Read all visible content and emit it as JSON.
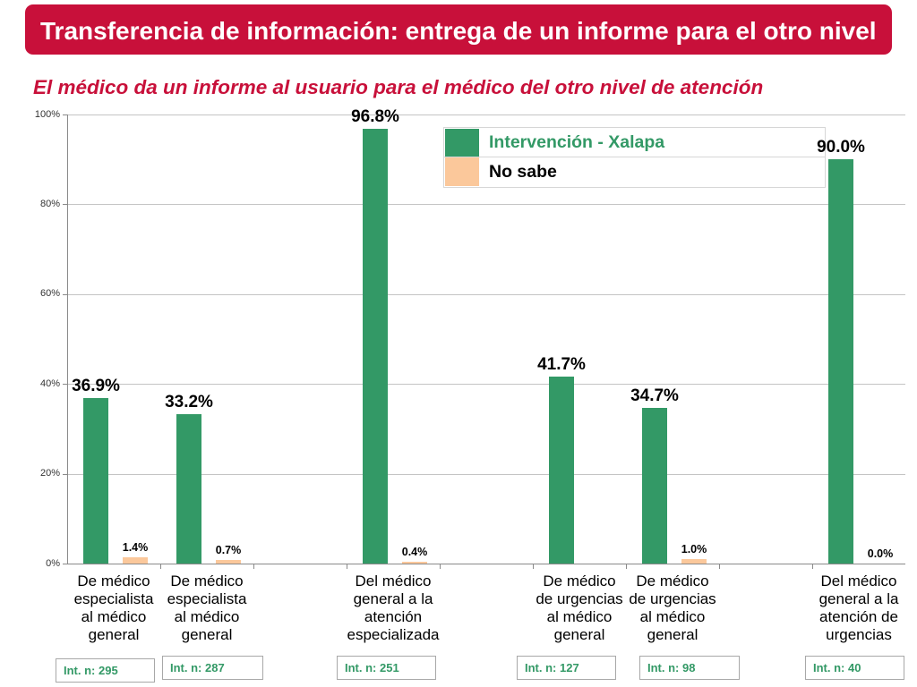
{
  "slide": {
    "title": "Transferencia de información: entrega de un informe para el otro nivel",
    "accent_color": "#c8103a"
  },
  "chart_data": {
    "type": "bar",
    "title": "El médico da un informe al usuario para el médico del otro nivel de atención",
    "xlabel": "",
    "ylabel": "",
    "categories": [
      "De médico\nespecialista\nal médico\ngeneral",
      "De médico\nespecialista\nal médico\ngeneral",
      "",
      "Del médico\ngeneral a la\natención\nespecializada",
      "",
      "De médico\nde urgencias\nal médico\ngeneral",
      "De médico\nde urgencias\nal médico\ngeneral",
      "",
      "Del médico\ngeneral a la\natención de\nurgencias"
    ],
    "series": [
      {
        "name": "Intervención - Xalapa",
        "color": "#339966",
        "label_color": "#339966",
        "values": [
          36.9,
          33.2,
          null,
          96.8,
          null,
          41.7,
          34.7,
          null,
          90.0
        ],
        "data_labels": [
          "36.9%",
          "33.2%",
          null,
          "96.8%",
          null,
          "41.7%",
          "34.7%",
          null,
          "90.0%"
        ]
      },
      {
        "name": "No sabe",
        "color": "#fbc89b",
        "label_color": "#000000",
        "values": [
          1.4,
          0.7,
          null,
          0.4,
          null,
          null,
          1.0,
          null,
          0.0
        ],
        "data_labels": [
          "1.4%",
          "0.7%",
          null,
          "0.4%",
          null,
          null,
          "1.0%",
          null,
          "0.0%"
        ]
      }
    ],
    "ylim": [
      0,
      100
    ],
    "yticks": [
      0,
      20,
      40,
      60,
      80,
      100
    ],
    "ytick_labels": [
      "0%",
      "20%",
      "40%",
      "60%",
      "80%",
      "100%"
    ],
    "grid": true,
    "legend_position": "top-right",
    "sample_size_labels": [
      "Int. n: 295",
      "Int. n: 287",
      "Int. n: 251",
      "Int. n: 127",
      "Int. n: 98",
      "Int. n: 40"
    ]
  }
}
